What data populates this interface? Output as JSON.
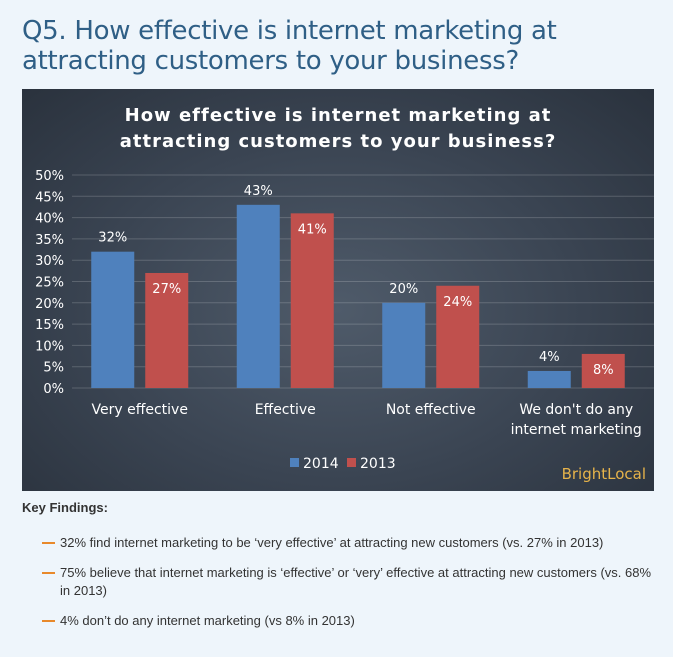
{
  "page": {
    "heading": "Q5. How effective is internet marketing at attracting customers to your business?"
  },
  "chart_data": {
    "type": "bar",
    "title_lines": [
      "How effective is internet marketing at",
      "attracting customers to your business?"
    ],
    "categories": [
      [
        "Very effective"
      ],
      [
        "Effective"
      ],
      [
        "Not effective"
      ],
      [
        "We don't do any",
        "internet marketing"
      ]
    ],
    "series": [
      {
        "name": "2014",
        "values": [
          32,
          43,
          20,
          4
        ],
        "labels": [
          "32%",
          "43%",
          "20%",
          "4%"
        ],
        "color": "#4f81bd"
      },
      {
        "name": "2013",
        "values": [
          27,
          41,
          24,
          8
        ],
        "labels": [
          "27%",
          "41%",
          "24%",
          "8%"
        ],
        "color": "#c0504d"
      }
    ],
    "ylim": [
      0,
      50
    ],
    "yticks": [
      "0%",
      "5%",
      "10%",
      "15%",
      "20%",
      "25%",
      "30%",
      "35%",
      "40%",
      "45%",
      "50%"
    ],
    "grid": true,
    "legend": "bottom-center"
  },
  "brand": "BrightLocal",
  "findings": {
    "heading": "Key Findings:",
    "items": [
      "32% find internet marketing to be ‘very effective’ at attracting new customers (vs. 27% in 2013)",
      "75% believe that internet marketing is ‘effective’ or ‘very’ effective at attracting new customers (vs. 68% in 2013)",
      "4% don’t do any internet marketing (vs 8% in 2013)"
    ]
  }
}
